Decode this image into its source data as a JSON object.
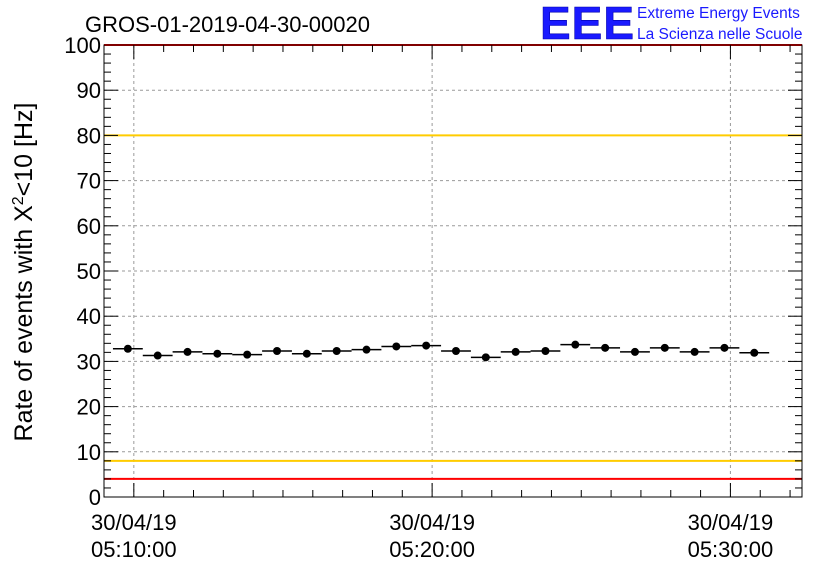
{
  "title": "GROS-01-2019-04-30-00020",
  "logo": {
    "mark": "EEE",
    "line1": "Extreme Energy Events",
    "line2": "La Scienza nelle Scuole",
    "color": "#1a1aff"
  },
  "chart_data": {
    "type": "scatter",
    "title": "GROS-01-2019-04-30-00020",
    "ylabel_parts": [
      "Rate of events with X",
      "2",
      "<10 [Hz]"
    ],
    "ylim": [
      0,
      100
    ],
    "y_ticks": [
      0,
      10,
      20,
      30,
      40,
      50,
      60,
      70,
      80,
      90,
      100
    ],
    "x_range_minutes": [
      -1.0,
      22.4
    ],
    "x_ticks": [
      {
        "min": 0,
        "date": "30/04/19",
        "time": "05:10:00"
      },
      {
        "min": 10,
        "date": "30/04/19",
        "time": "05:20:00"
      },
      {
        "min": 20,
        "date": "30/04/19",
        "time": "05:30:00"
      }
    ],
    "x_reference_time": "30/04/19 05:10:00",
    "bin_width_minutes": 1.0,
    "grid": true,
    "series": [
      {
        "x_minutes": [
          -0.2,
          0.8,
          1.8,
          2.8,
          3.8,
          4.8,
          5.8,
          6.8,
          7.8,
          8.8,
          9.8,
          10.8,
          11.8,
          12.8,
          13.8,
          14.8,
          15.8,
          16.8,
          17.8,
          18.8,
          19.8,
          20.8
        ],
        "values": [
          32.8,
          31.3,
          32.1,
          31.7,
          31.5,
          32.3,
          31.7,
          32.3,
          32.6,
          33.3,
          33.5,
          32.3,
          30.9,
          32.1,
          32.3,
          33.7,
          33.0,
          32.1,
          33.0,
          32.1,
          33.0,
          31.9
        ],
        "color": "#000000"
      }
    ],
    "reference_lines": [
      {
        "y": 100,
        "color": "#ff0000"
      },
      {
        "y": 80,
        "color": "#ffcc00"
      },
      {
        "y": 8,
        "color": "#ffcc00"
      },
      {
        "y": 4,
        "color": "#ff0000"
      }
    ]
  }
}
